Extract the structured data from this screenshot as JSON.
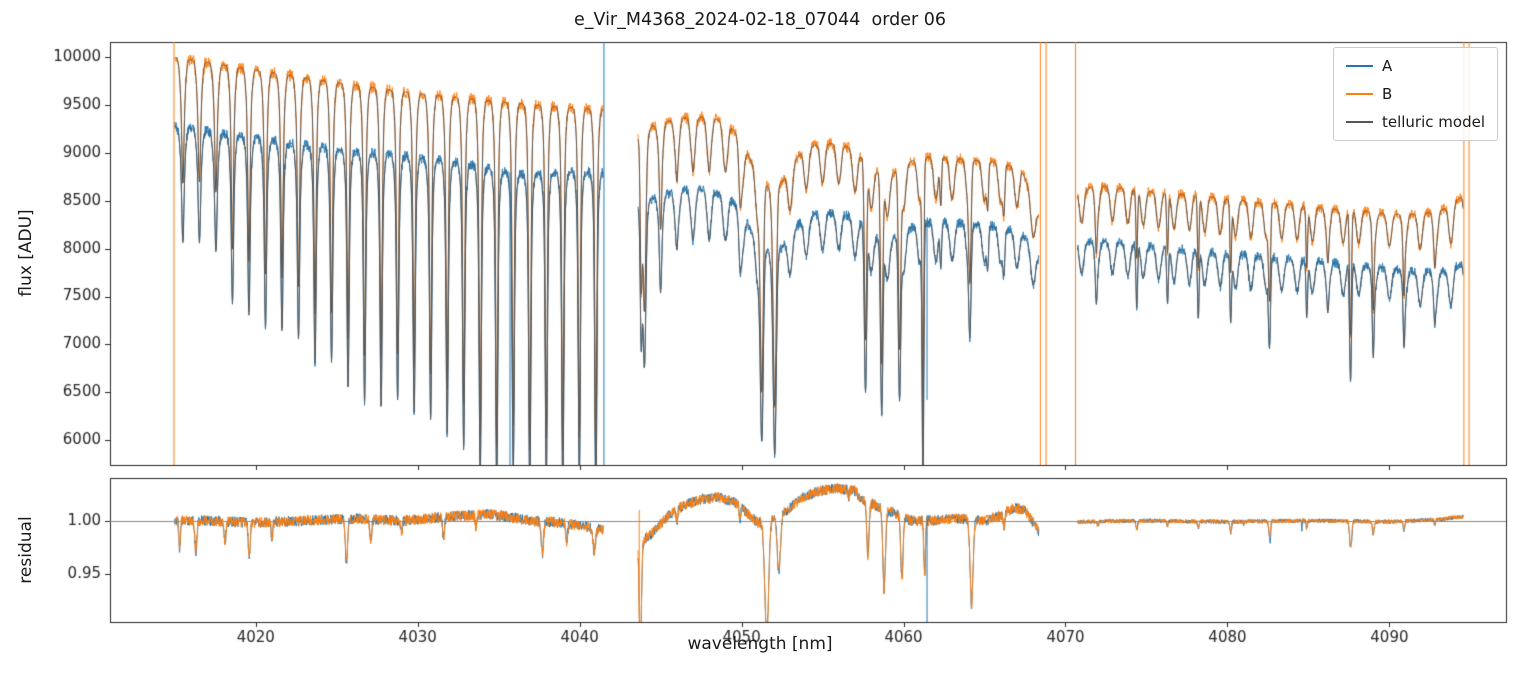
{
  "chart_data": {
    "type": "line",
    "title": "e_Vir_M4368_2024-02-18_07044  order 06",
    "xlabel": "wavelength [nm]",
    "xlim": [
      4011,
      4097.2
    ],
    "xticks": [
      4020,
      4030,
      4040,
      4050,
      4060,
      4070,
      4080,
      4090
    ],
    "panels": [
      {
        "ylabel": "flux [ADU]",
        "ylim": [
          5740,
          10160
        ],
        "yticks": [
          6000,
          6500,
          7000,
          7500,
          8000,
          8500,
          9000,
          9500,
          10000
        ]
      },
      {
        "ylabel": "residual",
        "ylim": [
          0.905,
          1.04
        ],
        "yticks": [
          0.95,
          1.0
        ],
        "hline": 1.0
      }
    ],
    "series": [
      {
        "name": "A",
        "color": "#1f77b4"
      },
      {
        "name": "B",
        "color": "#ff7f0e"
      },
      {
        "name": "telluric model",
        "color": "#565656"
      }
    ],
    "segments": [
      {
        "x0": 4015.0,
        "x1": 4041.45,
        "envA": [
          [
            4015,
            9280
          ],
          [
            4018,
            9200
          ],
          [
            4021,
            9130
          ],
          [
            4024,
            9060
          ],
          [
            4027,
            9000
          ],
          [
            4030,
            8950
          ],
          [
            4033,
            8890
          ],
          [
            4035,
            8810
          ],
          [
            4036.5,
            8770
          ],
          [
            4038,
            8790
          ],
          [
            4040,
            8800
          ],
          [
            4041.45,
            8790
          ]
        ],
        "envB": [
          [
            4015,
            10000
          ],
          [
            4018,
            9920
          ],
          [
            4021,
            9840
          ],
          [
            4024,
            9760
          ],
          [
            4027,
            9690
          ],
          [
            4030,
            9620
          ],
          [
            4033,
            9570
          ],
          [
            4036,
            9520
          ],
          [
            4039,
            9480
          ],
          [
            4041.45,
            9450
          ]
        ],
        "comb": {
          "period": 1.02,
          "phase": 4015.5,
          "q": 2.5,
          "amp": [
            [
              4015,
              0.055
            ],
            [
              4025,
              0.07
            ],
            [
              4033,
              0.08
            ],
            [
              4041.45,
              0.075
            ]
          ]
        },
        "broad": [],
        "deep": [],
        "deep_auto": {
          "sigma": 0.06,
          "floors": [
            [
              4015.5,
              8750
            ],
            [
              4018,
              8250
            ],
            [
              4020,
              7950
            ],
            [
              4022,
              7650
            ],
            [
              4024,
              7350
            ],
            [
              4026,
              7100
            ],
            [
              4028,
              6850
            ],
            [
              4030,
              6600
            ],
            [
              4032,
              6350
            ],
            [
              4034,
              6100
            ],
            [
              4036,
              5950
            ],
            [
              4038,
              5870
            ],
            [
              4041,
              5800
            ]
          ]
        }
      },
      {
        "x0": 4043.6,
        "x1": 4068.35,
        "envA": [
          [
            4043.6,
            8420
          ],
          [
            4044.5,
            8530
          ],
          [
            4046,
            8600
          ],
          [
            4048,
            8620
          ],
          [
            4049.5,
            8540
          ],
          [
            4051,
            8420
          ],
          [
            4052.5,
            8330
          ],
          [
            4054,
            8370
          ],
          [
            4056,
            8380
          ],
          [
            4058,
            8310
          ],
          [
            4060,
            8270
          ],
          [
            4062,
            8280
          ],
          [
            4064,
            8260
          ],
          [
            4066,
            8230
          ],
          [
            4067.3,
            8150
          ],
          [
            4068.35,
            7900
          ]
        ],
        "envB": [
          [
            4043.6,
            9150
          ],
          [
            4044.5,
            9280
          ],
          [
            4046,
            9360
          ],
          [
            4048,
            9380
          ],
          [
            4049.5,
            9300
          ],
          [
            4051,
            9150
          ],
          [
            4052.5,
            9050
          ],
          [
            4054,
            9100
          ],
          [
            4056,
            9100
          ],
          [
            4058,
            9020
          ],
          [
            4060,
            8970
          ],
          [
            4062,
            8960
          ],
          [
            4064,
            8930
          ],
          [
            4066,
            8900
          ],
          [
            4067.3,
            8820
          ],
          [
            4068.35,
            8350
          ]
        ],
        "comb": {
          "period": 1.0,
          "phase": 4044.0,
          "q": 2.5,
          "amp": [
            [
              4043.6,
              0.05
            ],
            [
              4050,
              0.055
            ],
            [
              4055,
              0.045
            ],
            [
              4060,
              0.05
            ],
            [
              4068.35,
              0.045
            ]
          ]
        },
        "broad": [
          [
            4051.7,
            1.1,
            0.05
          ],
          [
            4058.8,
            1.0,
            0.025
          ]
        ],
        "deep": [
          [
            4043.8,
            7600,
            0.06
          ],
          [
            4044.0,
            7350,
            0.08
          ],
          [
            4045.0,
            8200,
            0.06
          ],
          [
            4046.0,
            8700,
            0.05
          ],
          [
            4047.0,
            8800,
            0.05
          ],
          [
            4048.0,
            8800,
            0.05
          ],
          [
            4049.9,
            8450,
            0.06
          ],
          [
            4051.25,
            6500,
            0.09
          ],
          [
            4052.05,
            6350,
            0.09
          ],
          [
            4053.0,
            8500,
            0.06
          ],
          [
            4054.9,
            8800,
            0.05
          ],
          [
            4056.0,
            8750,
            0.05
          ],
          [
            4057.65,
            7050,
            0.07
          ],
          [
            4058.65,
            6800,
            0.07
          ],
          [
            4059.75,
            6950,
            0.07
          ],
          [
            4061.2,
            6000,
            0.05
          ],
          [
            4062.3,
            8450,
            0.05
          ],
          [
            4064.1,
            7650,
            0.07
          ],
          [
            4065.2,
            8400,
            0.05
          ],
          [
            4066.2,
            8350,
            0.06
          ]
        ],
        "deep_auto": null
      },
      {
        "x0": 4070.75,
        "x1": 4094.55,
        "envA": [
          [
            4070.75,
            8060
          ],
          [
            4072,
            8080
          ],
          [
            4074,
            8050
          ],
          [
            4076,
            8010
          ],
          [
            4078,
            7980
          ],
          [
            4080,
            7950
          ],
          [
            4082,
            7920
          ],
          [
            4084,
            7890
          ],
          [
            4086,
            7860
          ],
          [
            4088,
            7830
          ],
          [
            4090,
            7790
          ],
          [
            4092,
            7750
          ],
          [
            4093.5,
            7760
          ],
          [
            4094.55,
            7860
          ]
        ],
        "envB": [
          [
            4070.75,
            8600
          ],
          [
            4072,
            8660
          ],
          [
            4074,
            8620
          ],
          [
            4076,
            8580
          ],
          [
            4078,
            8560
          ],
          [
            4080,
            8520
          ],
          [
            4082,
            8480
          ],
          [
            4084,
            8460
          ],
          [
            4086,
            8420
          ],
          [
            4088,
            8400
          ],
          [
            4090,
            8360
          ],
          [
            4092,
            8360
          ],
          [
            4093.5,
            8420
          ],
          [
            4094.55,
            8560
          ]
        ],
        "comb": {
          "period": 0.95,
          "phase": 4071.0,
          "q": 2.5,
          "amp": [
            [
              4070.75,
              0.04
            ],
            [
              4080,
              0.045
            ],
            [
              4090,
              0.04
            ],
            [
              4094.55,
              0.05
            ]
          ]
        },
        "broad": [],
        "deep": [
          [
            4071.9,
            7950,
            0.05
          ],
          [
            4074.4,
            7900,
            0.05
          ],
          [
            4076.3,
            7950,
            0.05
          ],
          [
            4078.2,
            7800,
            0.05
          ],
          [
            4080.2,
            7750,
            0.05
          ],
          [
            4082.6,
            7450,
            0.06
          ],
          [
            4084.9,
            7800,
            0.05
          ],
          [
            4086.2,
            7850,
            0.05
          ],
          [
            4087.6,
            7100,
            0.06
          ],
          [
            4089.0,
            7350,
            0.05
          ],
          [
            4090.9,
            7500,
            0.05
          ],
          [
            4092.8,
            7800,
            0.05
          ]
        ],
        "deep_auto": null
      }
    ],
    "edge_lines": [
      {
        "x": 4014.95,
        "color": "#ff7f0e"
      },
      {
        "x": 4041.5,
        "color": "#1f77b4"
      },
      {
        "x": 4068.45,
        "color": "#ff7f0e"
      },
      {
        "x": 4068.8,
        "color": "#ff7f0e"
      },
      {
        "x": 4070.62,
        "color": "#ff7f0e"
      },
      {
        "x": 4094.6,
        "color": "#ff7f0e"
      },
      {
        "x": 4094.92,
        "color": "#ff7f0e"
      }
    ],
    "spikes": [
      {
        "panel": 0,
        "x": 4035.7,
        "y0": 8800,
        "y1": 5740,
        "color": "#1f77b4"
      },
      {
        "panel": 0,
        "x": 4061.45,
        "y0": 8260,
        "y1": 6420,
        "color": "#1f77b4"
      },
      {
        "panel": 1,
        "x": 4043.68,
        "y0": 1.01,
        "y1": 0.905,
        "color": "#ff7f0e"
      },
      {
        "panel": 1,
        "x": 4061.45,
        "y0": 1.005,
        "y1": 0.905,
        "color": "#1f77b4"
      }
    ],
    "residual_segments": [
      {
        "x0": 4015.0,
        "x1": 4041.45,
        "noise": 0.005,
        "base": [
          [
            4015,
            1.0
          ],
          [
            4017,
            1.0
          ],
          [
            4020,
            0.998
          ],
          [
            4023,
            1.0
          ],
          [
            4026,
            1.002
          ],
          [
            4029,
            1.0
          ],
          [
            4032,
            1.004
          ],
          [
            4034.5,
            1.006
          ],
          [
            4037,
            1.0
          ],
          [
            4039,
            0.998
          ],
          [
            4041.45,
            0.992
          ]
        ],
        "dips": [
          [
            4015.3,
            0.05,
            0.025
          ],
          [
            4016.3,
            0.06,
            0.03
          ],
          [
            4018.1,
            0.06,
            0.02
          ],
          [
            4019.6,
            0.06,
            0.035
          ],
          [
            4021.0,
            0.05,
            0.015
          ],
          [
            4025.6,
            0.07,
            0.04
          ],
          [
            4027.1,
            0.06,
            0.02
          ],
          [
            4029.0,
            0.05,
            0.012
          ],
          [
            4031.6,
            0.06,
            0.02
          ],
          [
            4033.6,
            0.05,
            0.012
          ],
          [
            4037.7,
            0.07,
            0.03
          ],
          [
            4039.2,
            0.06,
            0.018
          ],
          [
            4040.9,
            0.08,
            0.022
          ]
        ],
        "dipsA": []
      },
      {
        "x0": 4043.6,
        "x1": 4068.35,
        "noise": 0.005,
        "base": [
          [
            4043.6,
            0.978
          ],
          [
            4044.6,
            0.99
          ],
          [
            4045.5,
            1.005
          ],
          [
            4046.5,
            1.015
          ],
          [
            4047.5,
            1.02
          ],
          [
            4048.5,
            1.022
          ],
          [
            4049.5,
            1.018
          ],
          [
            4050.3,
            1.008
          ],
          [
            4051.0,
            0.998
          ],
          [
            4052.8,
            1.01
          ],
          [
            4053.8,
            1.022
          ],
          [
            4054.8,
            1.028
          ],
          [
            4056.0,
            1.03
          ],
          [
            4057.0,
            1.028
          ],
          [
            4057.4,
            1.02
          ],
          [
            4060.5,
            1.0
          ],
          [
            4061.8,
            1.0
          ],
          [
            4063.0,
            1.002
          ],
          [
            4065.0,
            1.0
          ],
          [
            4066.0,
            1.005
          ],
          [
            4066.8,
            1.012
          ],
          [
            4067.5,
            1.01
          ],
          [
            4068.35,
            0.99
          ]
        ],
        "dips": [
          [
            4043.75,
            0.07,
            0.1
          ],
          [
            4051.55,
            0.12,
            0.11
          ],
          [
            4052.3,
            0.1,
            0.055
          ],
          [
            4057.8,
            0.07,
            0.05
          ],
          [
            4058.8,
            0.08,
            0.075
          ],
          [
            4059.9,
            0.07,
            0.06
          ],
          [
            4061.3,
            0.05,
            0.05
          ],
          [
            4064.2,
            0.09,
            0.08
          ],
          [
            4049.9,
            0.05,
            0.012
          ],
          [
            4046.0,
            0.05,
            0.01
          ],
          [
            4056.6,
            0.04,
            0.008
          ],
          [
            4066.2,
            0.05,
            0.012
          ]
        ],
        "dipsA": []
      },
      {
        "x0": 4070.75,
        "x1": 4094.55,
        "noise": 0.002,
        "base": [
          [
            4070.75,
            0.999
          ],
          [
            4075,
            1.0
          ],
          [
            4080,
            0.999
          ],
          [
            4085,
            1.0
          ],
          [
            4090,
            0.999
          ],
          [
            4093,
            1.001
          ],
          [
            4094.55,
            1.004
          ]
        ],
        "dips": [
          [
            4072.0,
            0.05,
            0.004
          ],
          [
            4074.4,
            0.05,
            0.008
          ],
          [
            4076.3,
            0.04,
            0.005
          ],
          [
            4078.2,
            0.05,
            0.006
          ],
          [
            4080.2,
            0.05,
            0.01
          ],
          [
            4082.6,
            0.05,
            0.014
          ],
          [
            4084.9,
            0.04,
            0.008
          ],
          [
            4087.6,
            0.06,
            0.025
          ],
          [
            4089.0,
            0.05,
            0.012
          ],
          [
            4090.9,
            0.05,
            0.008
          ],
          [
            4092.8,
            0.04,
            0.005
          ]
        ],
        "dipsA": [
          [
            4082.65,
            0.03,
            0.012
          ],
          [
            4084.6,
            0.02,
            0.01
          ],
          [
            4087.7,
            0.03,
            0.008
          ],
          [
            4081.0,
            0.02,
            0.006
          ]
        ]
      }
    ]
  }
}
